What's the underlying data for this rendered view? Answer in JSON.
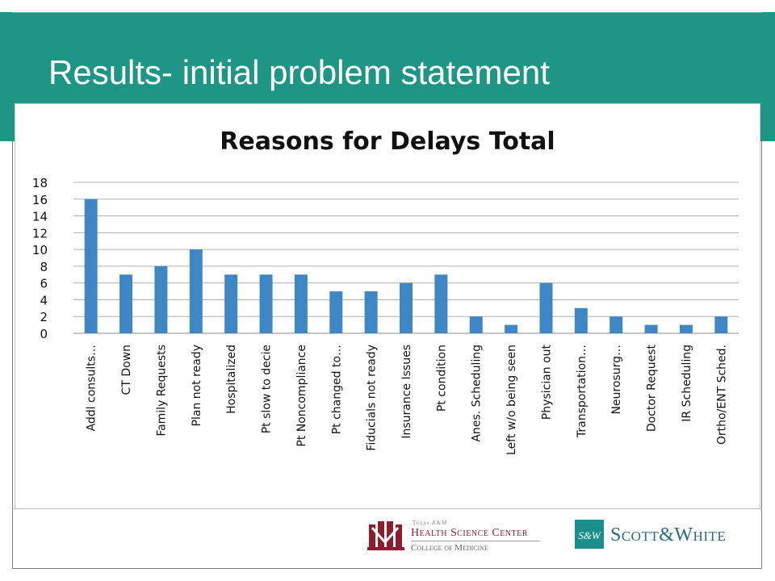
{
  "slide": {
    "title": "Results- initial problem statement"
  },
  "logos": {
    "hsc_small": "Texas A&M",
    "hsc_main": "Health Science Center",
    "hsc_sub": "College of Medicine",
    "sw_text": "Scott&White",
    "sw_icon_letters": "S&W"
  },
  "colors": {
    "header": "#1f9585",
    "bar": "#3f86c5",
    "hsc_red": "#8b1d2c",
    "sw_teal": "#1a8e8a"
  },
  "chart_data": {
    "type": "bar",
    "title": "Reasons for Delays Total",
    "categories": [
      "Addl consults…",
      "CT Down",
      "Family Requests",
      "Plan not ready",
      "Hospitalized",
      "Pt slow to decie",
      "Pt Noncompliance",
      "Pt changed to…",
      "Fiducials not ready",
      "Insurance Issues",
      "Pt condition",
      "Anes. Scheduling",
      "Left w/o being seen",
      "Physician out",
      "Transportation…",
      "Neurosurg…",
      "Doctor Request",
      "IR Scheduling",
      "Ortho/ENT Sched."
    ],
    "values": [
      16,
      7,
      8,
      10,
      7,
      7,
      7,
      5,
      5,
      6,
      7,
      2,
      1,
      6,
      3,
      2,
      1,
      1,
      2
    ],
    "ylim": [
      0,
      18
    ],
    "yticks": [
      0,
      2,
      4,
      6,
      8,
      10,
      12,
      14,
      16,
      18
    ],
    "grid": true,
    "legend": "none"
  }
}
